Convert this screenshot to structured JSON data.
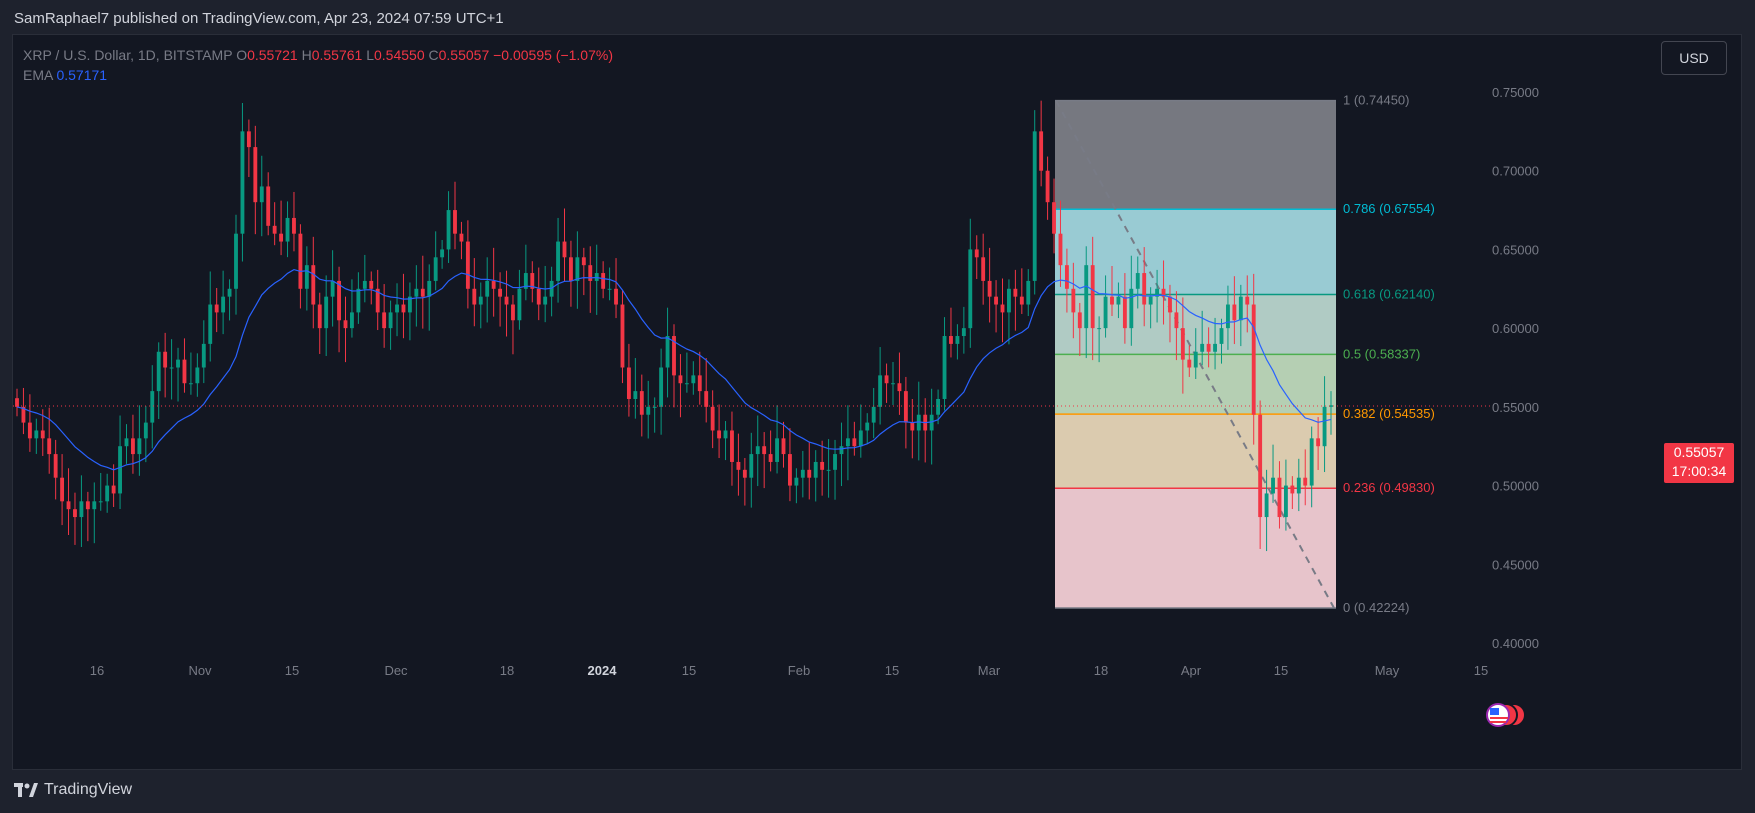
{
  "header": {
    "publisher_text": "SamRaphael7 published on TradingView.com, Apr 23, 2024 07:59 UTC+1"
  },
  "legend": {
    "symbol": "XRP / U.S. Dollar, 1D, BITSTAMP",
    "open_label": "O",
    "open": "0.55721",
    "high_label": "H",
    "high": "0.55761",
    "low_label": "L",
    "low": "0.54550",
    "close_label": "C",
    "close": "0.55057",
    "change": "−0.00595 (−1.07%)",
    "ema_label": "EMA",
    "ema_value": "0.57171"
  },
  "currency_button": "USD",
  "last_price": {
    "price": "0.55057",
    "countdown": "17:00:34"
  },
  "footer": {
    "logo_text": "TradingView"
  },
  "colors": {
    "up": "#089981",
    "down": "#f23645",
    "ema": "#2962ff",
    "background": "#131722"
  },
  "chart_data": {
    "type": "candlestick",
    "symbol": "XRP / U.S. Dollar",
    "interval": "1D",
    "exchange": "BITSTAMP",
    "y_axis": {
      "position": "right",
      "ticks": [
        "0.75000",
        "0.70000",
        "0.65000",
        "0.60000",
        "0.55000",
        "0.50000",
        "0.45000",
        "0.40000"
      ],
      "range": [
        0.385,
        0.77
      ]
    },
    "x_axis": {
      "ticks": [
        "16",
        "Nov",
        "15",
        "Dec",
        "18",
        "2024",
        "15",
        "Feb",
        "15",
        "Mar",
        "18",
        "Apr",
        "15",
        "May",
        "15"
      ]
    },
    "close_series": [
      0.55,
      0.54,
      0.53,
      0.535,
      0.53,
      0.52,
      0.505,
      0.49,
      0.485,
      0.48,
      0.49,
      0.485,
      0.49,
      0.49,
      0.5,
      0.495,
      0.525,
      0.53,
      0.52,
      0.53,
      0.54,
      0.56,
      0.585,
      0.575,
      0.575,
      0.58,
      0.565,
      0.565,
      0.575,
      0.59,
      0.615,
      0.61,
      0.62,
      0.625,
      0.66,
      0.725,
      0.715,
      0.68,
      0.69,
      0.665,
      0.66,
      0.655,
      0.67,
      0.66,
      0.625,
      0.64,
      0.615,
      0.6,
      0.62,
      0.63,
      0.605,
      0.6,
      0.61,
      0.625,
      0.63,
      0.625,
      0.61,
      0.6,
      0.61,
      0.615,
      0.61,
      0.62,
      0.625,
      0.62,
      0.63,
      0.645,
      0.65,
      0.675,
      0.66,
      0.655,
      0.625,
      0.615,
      0.62,
      0.63,
      0.625,
      0.62,
      0.615,
      0.605,
      0.625,
      0.635,
      0.625,
      0.615,
      0.62,
      0.63,
      0.655,
      0.645,
      0.63,
      0.645,
      0.64,
      0.63,
      0.635,
      0.625,
      0.625,
      0.615,
      0.575,
      0.555,
      0.56,
      0.545,
      0.55,
      0.55,
      0.575,
      0.595,
      0.57,
      0.565,
      0.565,
      0.57,
      0.56,
      0.55,
      0.535,
      0.53,
      0.535,
      0.515,
      0.51,
      0.505,
      0.52,
      0.525,
      0.52,
      0.515,
      0.53,
      0.52,
      0.5,
      0.505,
      0.51,
      0.505,
      0.515,
      0.51,
      0.51,
      0.52,
      0.525,
      0.53,
      0.525,
      0.535,
      0.54,
      0.55,
      0.57,
      0.565,
      0.565,
      0.56,
      0.54,
      0.535,
      0.545,
      0.535,
      0.545,
      0.555,
      0.595,
      0.59,
      0.595,
      0.6,
      0.65,
      0.645,
      0.63,
      0.62,
      0.615,
      0.61,
      0.625,
      0.62,
      0.615,
      0.63,
      0.725,
      0.7,
      0.68,
      0.66,
      0.64,
      0.625,
      0.61,
      0.6,
      0.64,
      0.6,
      0.6,
      0.62,
      0.615,
      0.62,
      0.6,
      0.625,
      0.635,
      0.615,
      0.62,
      0.625,
      0.62,
      0.61,
      0.6,
      0.58,
      0.575,
      0.585,
      0.59,
      0.585,
      0.59,
      0.6,
      0.615,
      0.605,
      0.62,
      0.615,
      0.545,
      0.48,
      0.495,
      0.505,
      0.48,
      0.5,
      0.495,
      0.505,
      0.5,
      0.53,
      0.525,
      0.55,
      0.551
    ],
    "ema": {
      "label": "EMA",
      "current": 0.57171
    },
    "last_price": 0.55057,
    "ohlc_last": {
      "open": 0.55721,
      "high": 0.55761,
      "low": 0.5455,
      "close": 0.55057,
      "change": -0.00595,
      "change_pct": -1.07
    },
    "fibonacci_retracement": {
      "levels": [
        {
          "ratio": "1",
          "price": 0.7445,
          "label": "1 (0.74450)",
          "color": "#787b86"
        },
        {
          "ratio": "0.786",
          "price": 0.67554,
          "label": "0.786 (0.67554)",
          "color": "#00bcd4"
        },
        {
          "ratio": "0.618",
          "price": 0.6214,
          "label": "0.618 (0.62140)",
          "color": "#089981"
        },
        {
          "ratio": "0.5",
          "price": 0.58337,
          "label": "0.5 (0.58337)",
          "color": "#4caf50"
        },
        {
          "ratio": "0.382",
          "price": 0.54535,
          "label": "0.382 (0.54535)",
          "color": "#ff9800"
        },
        {
          "ratio": "0.236",
          "price": 0.4983,
          "label": "0.236 (0.49830)",
          "color": "#f23645"
        },
        {
          "ratio": "0",
          "price": 0.42224,
          "label": "0 (0.42224)",
          "color": "#787b86"
        }
      ]
    }
  }
}
